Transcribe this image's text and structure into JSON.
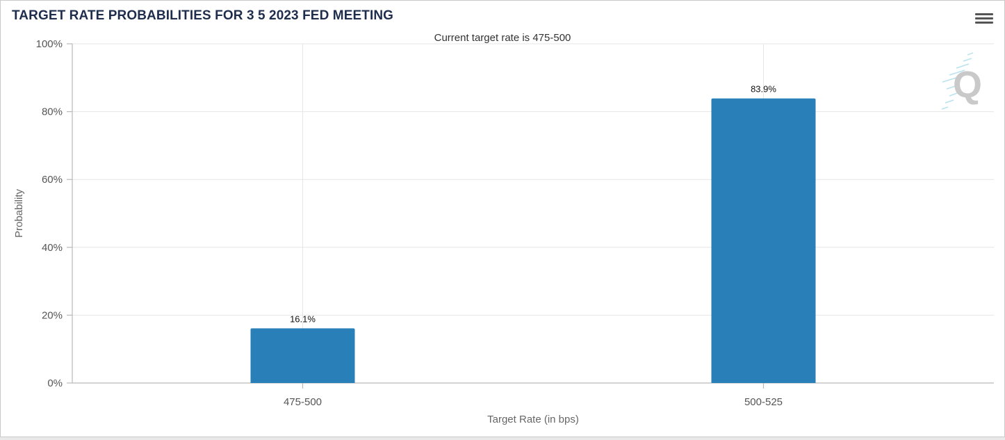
{
  "header": {
    "title": "TARGET RATE PROBABILITIES FOR 3 5 2023 FED MEETING",
    "menu_icon": "hamburger-menu-icon"
  },
  "colors": {
    "bar": "#2980b9",
    "title": "#1f2d4d"
  },
  "chart_data": {
    "type": "bar",
    "title": "TARGET RATE PROBABILITIES FOR 3 5 2023 FED MEETING",
    "subtitle": "Current target rate is 475-500",
    "xlabel": "Target Rate (in bps)",
    "ylabel": "Probability",
    "categories": [
      "475-500",
      "500-525"
    ],
    "values": [
      16.1,
      83.9
    ],
    "data_labels": [
      "16.1%",
      "83.9%"
    ],
    "ylim": [
      0,
      100
    ],
    "yticks": [
      "0%",
      "20%",
      "40%",
      "60%",
      "80%",
      "100%"
    ],
    "grid": true,
    "legend": "none"
  },
  "watermark": {
    "icon": "quikstrike-q-logo-icon"
  }
}
